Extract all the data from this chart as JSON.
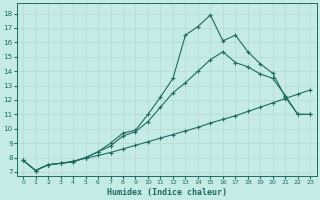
{
  "xlabel": "Humidex (Indice chaleur)",
  "bg_color": "#c5ebe6",
  "line_color": "#1e6b62",
  "grid_color": "#b8dbd6",
  "xlim": [
    -0.5,
    23.5
  ],
  "ylim": [
    6.7,
    18.7
  ],
  "xticks": [
    0,
    1,
    2,
    3,
    4,
    5,
    6,
    7,
    8,
    9,
    10,
    11,
    12,
    13,
    14,
    15,
    16,
    17,
    18,
    19,
    20,
    21,
    22,
    23
  ],
  "yticks": [
    7,
    8,
    9,
    10,
    11,
    12,
    13,
    14,
    15,
    16,
    17,
    18
  ],
  "line_jagged_x": [
    0,
    1,
    2,
    3,
    4,
    5,
    6,
    7,
    8,
    9,
    10,
    11,
    12,
    13,
    14,
    15,
    16,
    17,
    18,
    19,
    20,
    21,
    22,
    23
  ],
  "line_jagged_y": [
    7.8,
    7.1,
    7.5,
    7.6,
    7.7,
    8.0,
    8.4,
    9.0,
    9.7,
    9.9,
    11.0,
    12.2,
    13.5,
    16.5,
    17.1,
    17.9,
    16.1,
    16.5,
    15.35,
    14.5,
    13.85,
    12.2,
    11.0,
    11.0
  ],
  "line_smooth_x": [
    0,
    1,
    2,
    3,
    4,
    5,
    6,
    7,
    8,
    9,
    10,
    11,
    12,
    13,
    14,
    15,
    16,
    17,
    18,
    19,
    20,
    21,
    22,
    23
  ],
  "line_smooth_y": [
    7.8,
    7.1,
    7.5,
    7.6,
    7.7,
    8.0,
    8.4,
    8.8,
    9.5,
    9.8,
    10.5,
    11.5,
    12.5,
    13.2,
    14.0,
    14.8,
    15.35,
    14.6,
    14.3,
    13.8,
    13.5,
    12.3,
    11.0,
    11.0
  ],
  "line_linear_x": [
    0,
    1,
    2,
    3,
    4,
    5,
    6,
    7,
    8,
    9,
    10,
    11,
    12,
    13,
    14,
    15,
    16,
    17,
    18,
    19,
    20,
    21,
    22,
    23
  ],
  "line_linear_y": [
    7.8,
    7.1,
    7.5,
    7.6,
    7.75,
    7.95,
    8.15,
    8.35,
    8.6,
    8.85,
    9.1,
    9.35,
    9.6,
    9.85,
    10.1,
    10.4,
    10.65,
    10.9,
    11.2,
    11.5,
    11.8,
    12.1,
    12.4,
    12.7
  ]
}
